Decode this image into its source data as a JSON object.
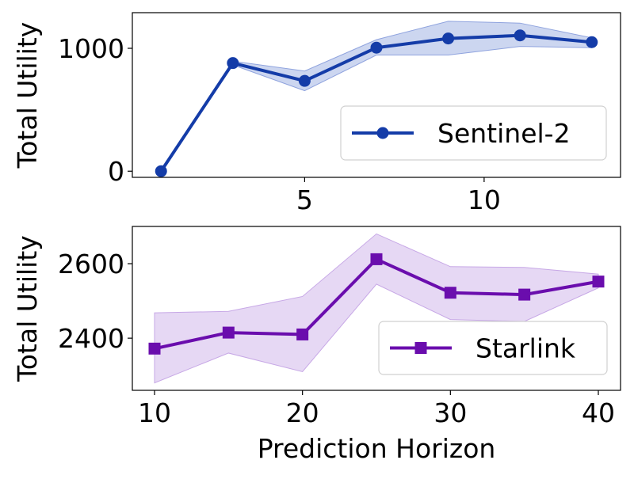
{
  "chart_data": [
    {
      "type": "line",
      "xlabel": "",
      "ylabel": "Total Utility",
      "xlim": [
        0.2,
        13.8
      ],
      "ylim": [
        -50,
        1290
      ],
      "xticks": [
        5,
        10
      ],
      "yticks": [
        0,
        1000
      ],
      "grid": false,
      "legend_position": "lower-right",
      "series": [
        {
          "name": "Sentinel-2",
          "marker": "circle",
          "color": "#143ca8",
          "band_color": "#8fa3de",
          "x": [
            1,
            3,
            5,
            7,
            9,
            11,
            13
          ],
          "y": [
            0,
            880,
            735,
            1005,
            1080,
            1105,
            1050
          ],
          "band_lower": [
            0,
            865,
            655,
            945,
            945,
            1015,
            1005
          ],
          "band_upper": [
            0,
            895,
            815,
            1070,
            1220,
            1205,
            1085
          ]
        }
      ]
    },
    {
      "type": "line",
      "xlabel": "Prediction Horizon",
      "ylabel": "Total Utility",
      "xlim": [
        8.5,
        41.5
      ],
      "ylim": [
        2260,
        2700
      ],
      "xticks": [
        10,
        20,
        30,
        40
      ],
      "yticks": [
        2400,
        2600
      ],
      "grid": false,
      "legend_position": "lower-right",
      "series": [
        {
          "name": "Starlink",
          "marker": "square",
          "color": "#6a0dad",
          "band_color": "#c7a8e6",
          "x": [
            10,
            15,
            20,
            25,
            30,
            35,
            40
          ],
          "y": [
            2372,
            2415,
            2410,
            2612,
            2522,
            2517,
            2552
          ],
          "band_lower": [
            2280,
            2360,
            2310,
            2545,
            2450,
            2445,
            2535
          ],
          "band_upper": [
            2468,
            2472,
            2512,
            2680,
            2592,
            2590,
            2572
          ]
        }
      ]
    }
  ]
}
